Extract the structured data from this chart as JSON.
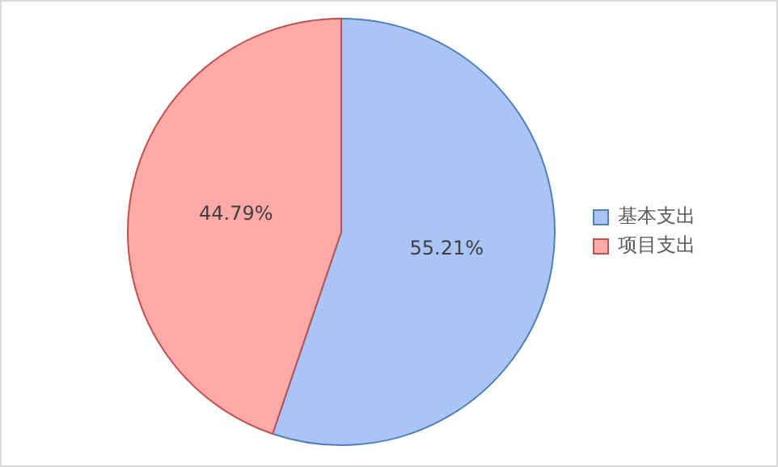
{
  "chart_data": {
    "type": "pie",
    "categories": [
      "基本支出",
      "项目支出"
    ],
    "values": [
      55.21,
      44.79
    ],
    "colors": [
      "#a9c4f5",
      "#ffaaa8"
    ],
    "value_labels": [
      "55.21%",
      "44.79%"
    ],
    "legend": "right"
  }
}
